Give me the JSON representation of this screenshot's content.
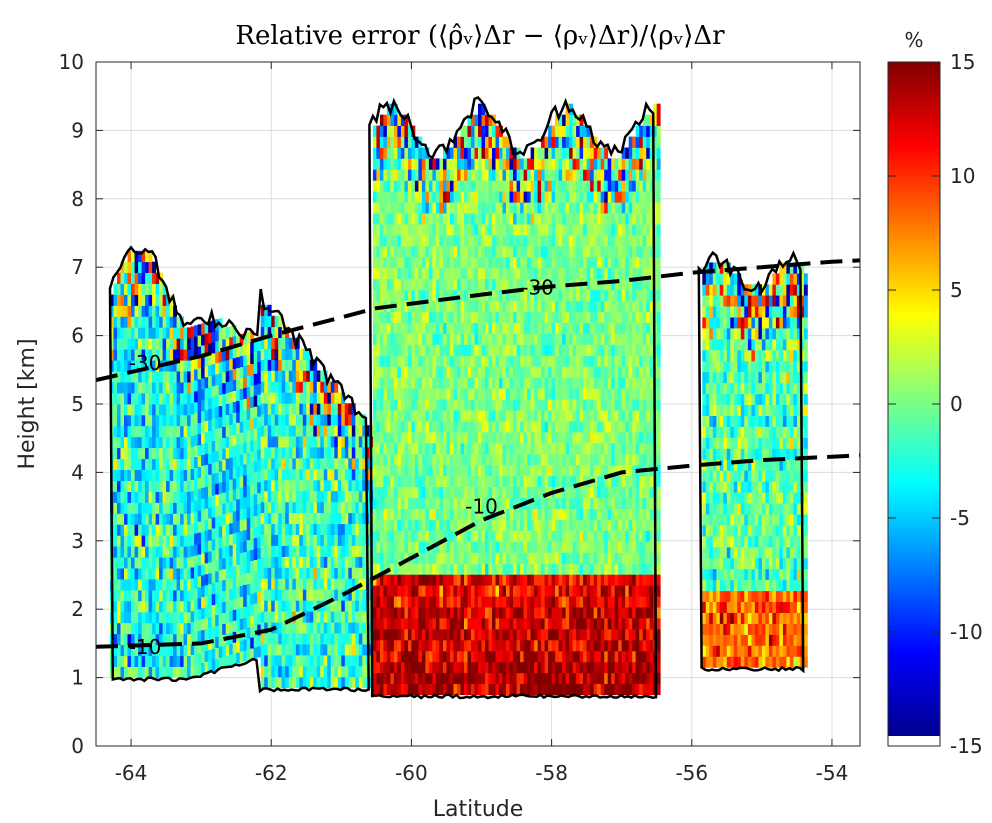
{
  "chart_data": {
    "type": "heatmap",
    "title": "Relative error (⟨ρ̂ᵥ⟩Δr − ⟨ρᵥ⟩Δr)/⟨ρᵥ⟩Δr",
    "xlabel": "Latitude",
    "ylabel": "Height [km]",
    "xlim": [
      -64.5,
      -53.6
    ],
    "ylim": [
      0,
      10
    ],
    "xticks": [
      "-64",
      "-62",
      "-60",
      "-58",
      "-56",
      "-54"
    ],
    "yticks": [
      "0",
      "1",
      "2",
      "3",
      "4",
      "5",
      "6",
      "7",
      "8",
      "9",
      "10"
    ],
    "grid": true,
    "colorbar": {
      "label": "%",
      "range": [
        -15,
        15
      ],
      "ticks": [
        "-15",
        "-10",
        "-5",
        "0",
        "5",
        "10",
        "15"
      ],
      "colormap": "jet"
    },
    "contours": [
      {
        "label": "-30",
        "x": [
          -64.5,
          -63.0,
          -62.0,
          -60.5,
          -59.0,
          -58.0,
          -57.0,
          -56.0,
          -55.0,
          -54.0,
          -53.6
        ],
        "y": [
          5.35,
          5.7,
          6.0,
          6.4,
          6.6,
          6.72,
          6.8,
          6.92,
          7.0,
          7.08,
          7.1
        ]
      },
      {
        "label": "-10",
        "x": [
          -64.5,
          -63.0,
          -62.0,
          -61.0,
          -60.0,
          -59.0,
          -58.0,
          -57.0,
          -56.0,
          -55.0,
          -54.0,
          -53.6
        ],
        "y": [
          1.45,
          1.5,
          1.7,
          2.2,
          2.75,
          3.3,
          3.7,
          4.0,
          4.1,
          4.18,
          4.23,
          4.25
        ]
      }
    ],
    "contour_labels": [
      {
        "text": "-30",
        "x": -58.2,
        "y": 6.7
      },
      {
        "text": "-30",
        "x": -63.8,
        "y": 5.6
      },
      {
        "text": "-10",
        "x": -59.0,
        "y": 3.5
      },
      {
        "text": "-10",
        "x": -63.8,
        "y": 1.45
      }
    ],
    "regions": [
      {
        "name": "left-cloud",
        "x": [
          -64.3,
          -62.2
        ],
        "top": 7.2,
        "bottom": 1.3,
        "value_mean": -4
      },
      {
        "name": "central-cloud",
        "x": [
          -60.6,
          -56.5
        ],
        "top": 9.3,
        "bottom": 0.75,
        "value_mean": 0
      },
      {
        "name": "central-low-bias",
        "x": [
          -60.8,
          -56.5
        ],
        "top": 2.5,
        "bottom": 0.75,
        "value_mean": 14
      },
      {
        "name": "right-cloud",
        "x": [
          -55.9,
          -54.4
        ],
        "top": 7.0,
        "bottom": 1.15,
        "value_mean": -1
      }
    ]
  }
}
